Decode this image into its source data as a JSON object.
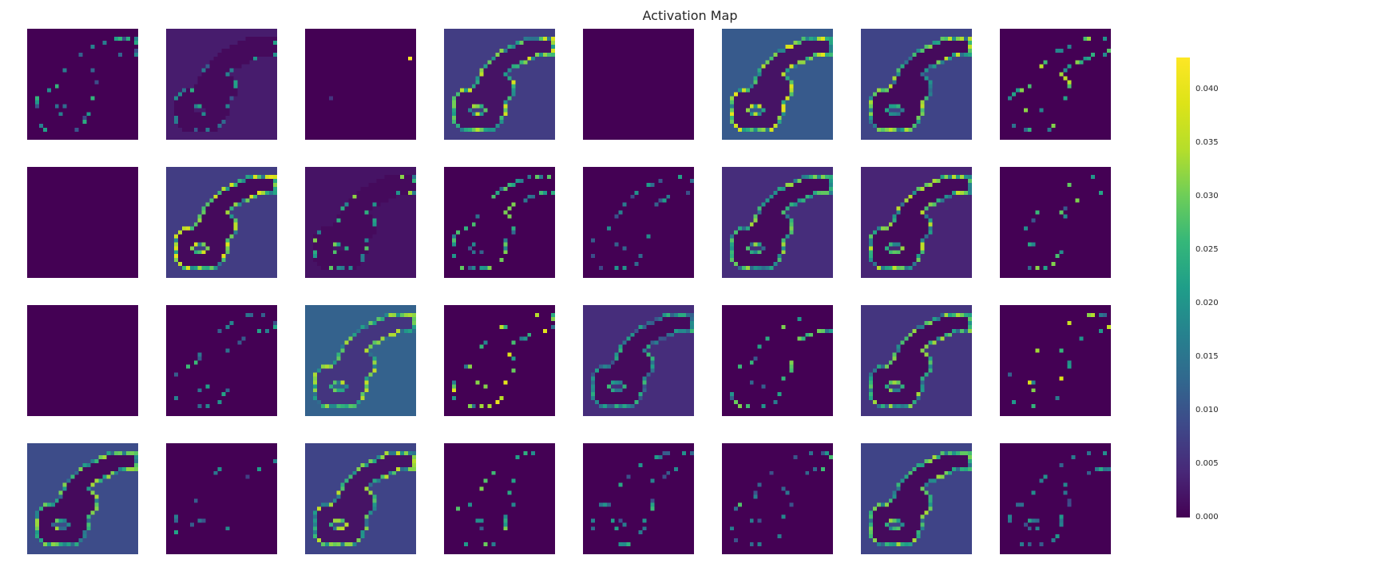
{
  "chart_data": {
    "type": "heatmap",
    "title": "Activation Map",
    "layout": {
      "rows": 4,
      "cols": 8
    },
    "colormap": "viridis",
    "grid": false,
    "colorbar": {
      "min": 0.0,
      "max": 0.043,
      "ticks": [
        0.0,
        0.005,
        0.01,
        0.015,
        0.02,
        0.025,
        0.03,
        0.035,
        0.04
      ],
      "tick_labels": [
        "0.000",
        "0.005",
        "0.010",
        "0.015",
        "0.020",
        "0.025",
        "0.030",
        "0.035",
        "0.040"
      ],
      "placement": "right"
    },
    "panels": [
      {
        "id": 1,
        "background": 0.0,
        "inside": 0.0,
        "edge": 0.022,
        "pattern": "sparse"
      },
      {
        "id": 2,
        "background": 0.003,
        "inside": 0.001,
        "edge": 0.02,
        "pattern": "sparse-shape"
      },
      {
        "id": 3,
        "background": 0.0,
        "inside": 0.0,
        "edge": 0.0,
        "pattern": "near-empty"
      },
      {
        "id": 4,
        "background": 0.007,
        "inside": 0.002,
        "edge": 0.032,
        "pattern": "full"
      },
      {
        "id": 5,
        "background": 0.0,
        "inside": 0.0,
        "edge": 0.0,
        "pattern": "empty"
      },
      {
        "id": 6,
        "background": 0.011,
        "inside": 0.002,
        "edge": 0.034,
        "pattern": "full"
      },
      {
        "id": 7,
        "background": 0.008,
        "inside": 0.001,
        "edge": 0.03,
        "pattern": "full"
      },
      {
        "id": 8,
        "background": 0.0,
        "inside": 0.0,
        "edge": 0.03,
        "pattern": "sparse"
      },
      {
        "id": 9,
        "background": 0.0,
        "inside": 0.0,
        "edge": 0.0,
        "pattern": "empty"
      },
      {
        "id": 10,
        "background": 0.007,
        "inside": 0.001,
        "edge": 0.033,
        "pattern": "full"
      },
      {
        "id": 11,
        "background": 0.002,
        "inside": 0.001,
        "edge": 0.028,
        "pattern": "sparse-shape"
      },
      {
        "id": 12,
        "background": 0.0,
        "inside": 0.0,
        "edge": 0.026,
        "pattern": "sparse"
      },
      {
        "id": 13,
        "background": 0.0,
        "inside": 0.0,
        "edge": 0.02,
        "pattern": "sparse"
      },
      {
        "id": 14,
        "background": 0.005,
        "inside": 0.001,
        "edge": 0.028,
        "pattern": "full"
      },
      {
        "id": 15,
        "background": 0.004,
        "inside": 0.001,
        "edge": 0.03,
        "pattern": "full"
      },
      {
        "id": 16,
        "background": 0.0,
        "inside": 0.0,
        "edge": 0.025,
        "pattern": "sparse-small"
      },
      {
        "id": 17,
        "background": 0.0,
        "inside": 0.0,
        "edge": 0.0,
        "pattern": "empty"
      },
      {
        "id": 18,
        "background": 0.0,
        "inside": 0.0,
        "edge": 0.022,
        "pattern": "sparse"
      },
      {
        "id": 19,
        "background": 0.012,
        "inside": 0.006,
        "edge": 0.03,
        "pattern": "full"
      },
      {
        "id": 20,
        "background": 0.0,
        "inside": 0.0,
        "edge": 0.034,
        "pattern": "sparse"
      },
      {
        "id": 21,
        "background": 0.005,
        "inside": 0.001,
        "edge": 0.022,
        "pattern": "full"
      },
      {
        "id": 22,
        "background": 0.0,
        "inside": 0.0,
        "edge": 0.026,
        "pattern": "sparse"
      },
      {
        "id": 23,
        "background": 0.006,
        "inside": 0.001,
        "edge": 0.028,
        "pattern": "full"
      },
      {
        "id": 24,
        "background": 0.0,
        "inside": 0.0,
        "edge": 0.03,
        "pattern": "sparse-small"
      },
      {
        "id": 25,
        "background": 0.009,
        "inside": 0.001,
        "edge": 0.028,
        "pattern": "full"
      },
      {
        "id": 26,
        "background": 0.0,
        "inside": 0.0,
        "edge": 0.018,
        "pattern": "sparse-small"
      },
      {
        "id": 27,
        "background": 0.008,
        "inside": 0.002,
        "edge": 0.03,
        "pattern": "full"
      },
      {
        "id": 28,
        "background": 0.0,
        "inside": 0.0,
        "edge": 0.026,
        "pattern": "sparse-small"
      },
      {
        "id": 29,
        "background": 0.0,
        "inside": 0.0,
        "edge": 0.022,
        "pattern": "sparse"
      },
      {
        "id": 30,
        "background": 0.0,
        "inside": 0.0,
        "edge": 0.024,
        "pattern": "sparse"
      },
      {
        "id": 31,
        "background": 0.008,
        "inside": 0.001,
        "edge": 0.028,
        "pattern": "full"
      },
      {
        "id": 32,
        "background": 0.0,
        "inside": 0.0,
        "edge": 0.02,
        "pattern": "sparse"
      }
    ]
  }
}
